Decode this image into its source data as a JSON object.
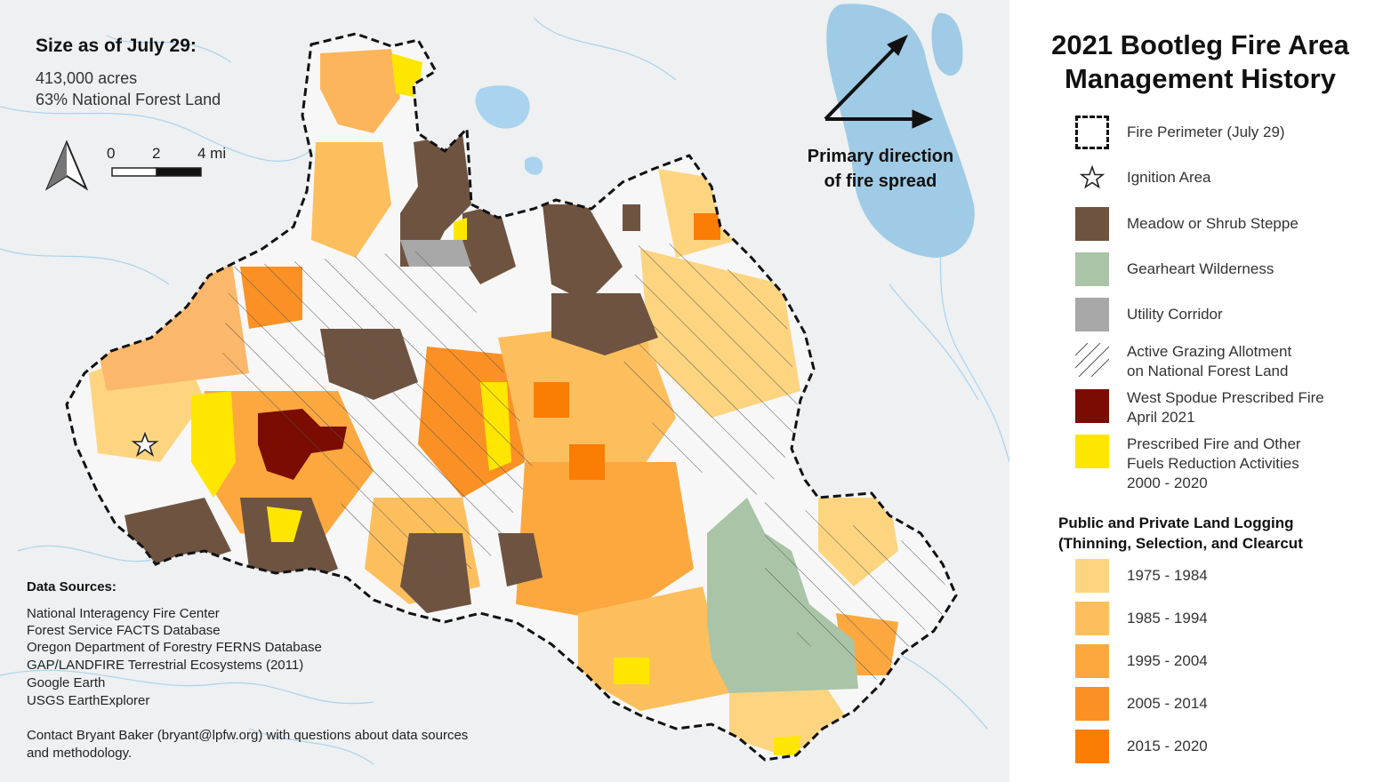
{
  "map": {
    "size_title": "Size as of July 29:",
    "size_acres": "413,000 acres",
    "size_forest": "63% National Forest Land",
    "scale": {
      "zero": "0",
      "mid": "2",
      "end": "4 mi"
    },
    "north_arrow_icon": "north-arrow-icon",
    "direction_line1": "Primary direction",
    "direction_line2": "of fire spread",
    "data_sources_title": "Data Sources:",
    "data_sources": [
      "National Interagency Fire Center",
      "Forest Service FACTS Database",
      "Oregon Department of Forestry FERNS Database",
      "GAP/LANDFIRE Terrestrial Ecosystems (2011)",
      "Google Earth",
      "USGS EarthExplorer"
    ],
    "contact": "Contact Bryant Baker (bryant@lpfw.org) with questions about data sources and methodology."
  },
  "legend": {
    "title_line1": "2021 Bootleg Fire Area",
    "title_line2": "Management History",
    "items": [
      {
        "label": "Fire Perimeter (July 29)"
      },
      {
        "label": "Ignition Area"
      },
      {
        "label": "Meadow or Shrub Steppe",
        "color": "#6f5341"
      },
      {
        "label": "Gearheart Wilderness",
        "color": "#a9c4a6"
      },
      {
        "label": "Utility Corridor",
        "color": "#a8a8a8"
      },
      {
        "label_line1": "Active Grazing Allotment",
        "label_line2": "on National Forest Land"
      },
      {
        "label_line1": "West Spodue Prescribed Fire",
        "label_line2": "April 2021",
        "color": "#7b0c02"
      },
      {
        "label_line1": "Prescribed Fire and Other",
        "label_line2": "Fuels Reduction Activities",
        "label_line3": "2000 - 2020",
        "color": "#ffe600"
      }
    ],
    "logging_title_line1": "Public and Private Land Logging",
    "logging_title_line2": "(Thinning, Selection, and Clearcut",
    "logging": [
      {
        "label": "1975 - 1984",
        "color": "#fdd581"
      },
      {
        "label": "1985 - 1994",
        "color": "#fdbf5d"
      },
      {
        "label": "1995 - 2004",
        "color": "#fca83f"
      },
      {
        "label": "2005 - 2014",
        "color": "#fb9124"
      },
      {
        "label": "2015 - 2020",
        "color": "#fa7d04"
      }
    ]
  }
}
